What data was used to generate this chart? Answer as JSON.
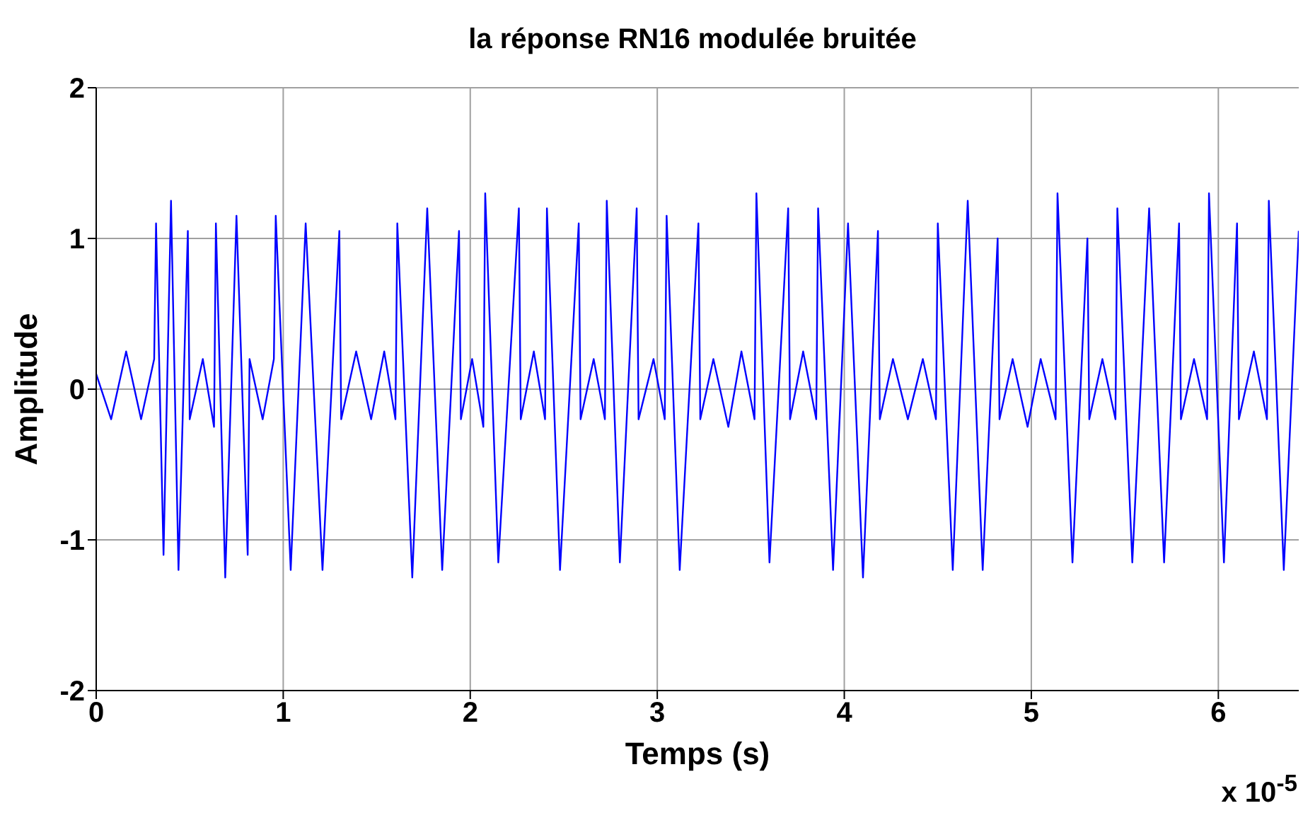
{
  "chart_data": {
    "type": "line",
    "title": "la réponse RN16 modulée bruitée",
    "xlabel": "Temps (s)",
    "ylabel": "Amplitude",
    "annotations": [
      "x 10$^{-5}$"
    ],
    "xlim": [
      0,
      6.43
    ],
    "ylim": [
      -2,
      2
    ],
    "xticks": [
      0,
      1,
      2,
      3,
      4,
      5,
      6
    ],
    "yticks": [
      -2,
      -1,
      0,
      1,
      2
    ],
    "grid": true,
    "legend": false,
    "marker": "none",
    "line_style": "solid",
    "series": [
      {
        "color": "#0000ff",
        "x": [
          0,
          0.08,
          0.16,
          0.24,
          0.31,
          0.32,
          0.36,
          0.4,
          0.44,
          0.49,
          0.5,
          0.57,
          0.63,
          0.64,
          0.69,
          0.75,
          0.81,
          0.82,
          0.89,
          0.95,
          0.96,
          1.04,
          1.12,
          1.21,
          1.3,
          1.31,
          1.39,
          1.47,
          1.54,
          1.6,
          1.61,
          1.69,
          1.77,
          1.85,
          1.94,
          1.95,
          2.01,
          2.07,
          2.08,
          2.15,
          2.26,
          2.27,
          2.34,
          2.4,
          2.41,
          2.48,
          2.58,
          2.59,
          2.66,
          2.72,
          2.73,
          2.8,
          2.89,
          2.9,
          2.98,
          3.04,
          3.05,
          3.12,
          3.22,
          3.23,
          3.3,
          3.38,
          3.45,
          3.52,
          3.53,
          3.6,
          3.7,
          3.71,
          3.78,
          3.85,
          3.86,
          3.94,
          4.02,
          4.1,
          4.18,
          4.19,
          4.26,
          4.34,
          4.42,
          4.49,
          4.5,
          4.58,
          4.66,
          4.74,
          4.82,
          4.83,
          4.9,
          4.98,
          5.05,
          5.13,
          5.14,
          5.22,
          5.3,
          5.31,
          5.38,
          5.45,
          5.46,
          5.54,
          5.63,
          5.71,
          5.79,
          5.8,
          5.87,
          5.94,
          5.95,
          6.03,
          6.1,
          6.11,
          6.19,
          6.26,
          6.27,
          6.35,
          6.43
        ],
        "values": [
          0.1,
          -0.2,
          0.25,
          -0.2,
          0.2,
          1.1,
          -1.1,
          1.25,
          -1.2,
          1.05,
          -0.2,
          0.2,
          -0.25,
          1.1,
          -1.25,
          1.15,
          -1.1,
          0.2,
          -0.2,
          0.2,
          1.15,
          -1.2,
          1.1,
          -1.2,
          1.05,
          -0.2,
          0.25,
          -0.2,
          0.25,
          -0.2,
          1.1,
          -1.25,
          1.2,
          -1.2,
          1.05,
          -0.2,
          0.2,
          -0.25,
          1.3,
          -1.15,
          1.2,
          -0.2,
          0.25,
          -0.2,
          1.2,
          -1.2,
          1.1,
          -0.2,
          0.2,
          -0.2,
          1.25,
          -1.15,
          1.2,
          -0.2,
          0.2,
          -0.2,
          1.15,
          -1.2,
          1.1,
          -0.2,
          0.2,
          -0.25,
          0.25,
          -0.2,
          1.3,
          -1.15,
          1.2,
          -0.2,
          0.25,
          -0.2,
          1.2,
          -1.2,
          1.1,
          -1.25,
          1.05,
          -0.2,
          0.2,
          -0.2,
          0.2,
          -0.2,
          1.1,
          -1.2,
          1.25,
          -1.2,
          1.0,
          -0.2,
          0.2,
          -0.25,
          0.2,
          -0.2,
          1.3,
          -1.15,
          1.0,
          -0.2,
          0.2,
          -0.2,
          1.2,
          -1.15,
          1.2,
          -1.15,
          1.1,
          -0.2,
          0.2,
          -0.2,
          1.3,
          -1.15,
          1.1,
          -0.2,
          0.25,
          -0.2,
          1.25,
          -1.2,
          1.05
        ]
      }
    ]
  }
}
